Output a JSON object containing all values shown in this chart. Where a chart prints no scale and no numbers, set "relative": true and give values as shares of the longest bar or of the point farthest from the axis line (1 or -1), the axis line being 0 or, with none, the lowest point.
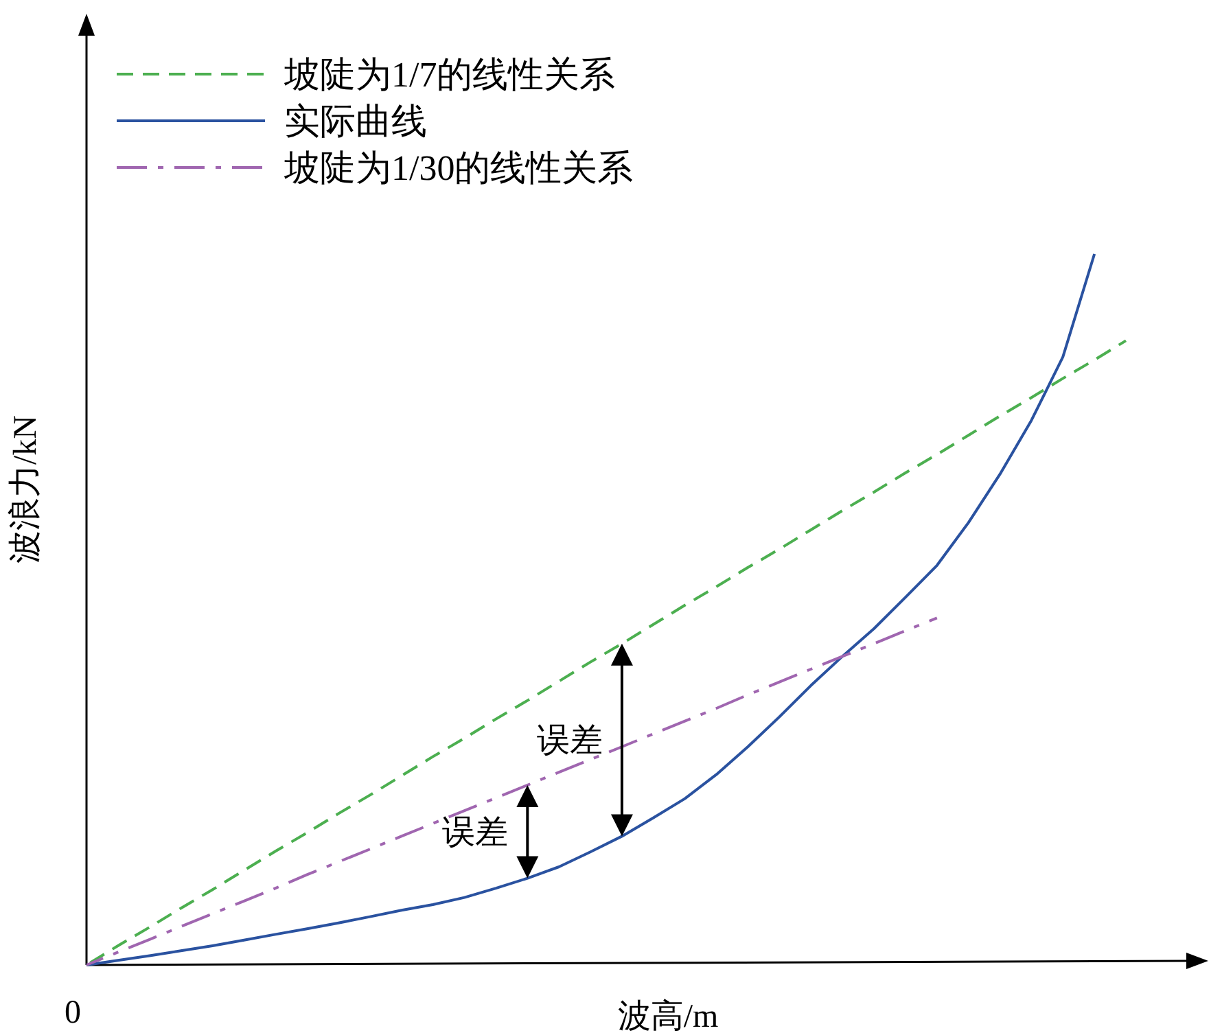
{
  "chart_data": {
    "type": "line",
    "relative": true,
    "xlabel": "波高/m",
    "ylabel": "波浪力/kN",
    "legend": "top left",
    "marker": "none",
    "categories": [
      null,
      null,
      null,
      null,
      null,
      null,
      null,
      null,
      null,
      null,
      null,
      null,
      null,
      null,
      null,
      null,
      null,
      null,
      null,
      null,
      null,
      null,
      null,
      null,
      null,
      null,
      null,
      null,
      null,
      null,
      null,
      null,
      null,
      null
    ],
    "series": [
      {
        "name": "坡陡为1/7的线性关系",
        "color": "#4caf50",
        "line_style": "dashed",
        "values": [
          0,
          0.027,
          0.053,
          0.08,
          0.106,
          0.133,
          0.16,
          0.186,
          0.213,
          0.239,
          0.266,
          0.293,
          0.319,
          0.346,
          0.372,
          0.399,
          0.426,
          0.452,
          0.479,
          0.506,
          0.532,
          0.559,
          0.585,
          0.612,
          0.639,
          0.665,
          0.692,
          0.718,
          0.745,
          0.772,
          0.798,
          0.825,
          0.851,
          0.878
        ]
      },
      {
        "name": "实际曲线",
        "color": "#2a52a0",
        "line_style": "solid",
        "values": [
          0,
          0.0065,
          0.013,
          0.02,
          0.027,
          0.035,
          0.043,
          0.051,
          0.059,
          0.068,
          0.077,
          0.085,
          0.095,
          0.108,
          0.122,
          0.138,
          0.159,
          0.181,
          0.207,
          0.234,
          0.268,
          0.307,
          0.349,
          0.393,
          0.434,
          0.473,
          0.517,
          0.562,
          0.622,
          0.69,
          0.766,
          0.855,
          1,
          null
        ]
      },
      {
        "name": "坡陡为1/30的线性关系",
        "color": "#a066b0",
        "line_style": "dashdot",
        "values": [
          0,
          0.018,
          0.036,
          0.054,
          0.072,
          0.09,
          0.108,
          0.127,
          0.145,
          0.163,
          0.181,
          0.199,
          0.217,
          0.235,
          0.253,
          0.271,
          0.289,
          0.307,
          0.325,
          0.343,
          0.361,
          0.38,
          0.398,
          0.416,
          0.434,
          0.452,
          0.47,
          0.488,
          null,
          null,
          null,
          null,
          null,
          null
        ]
      }
    ],
    "annotations": [
      "0",
      "误差",
      "误差"
    ]
  }
}
